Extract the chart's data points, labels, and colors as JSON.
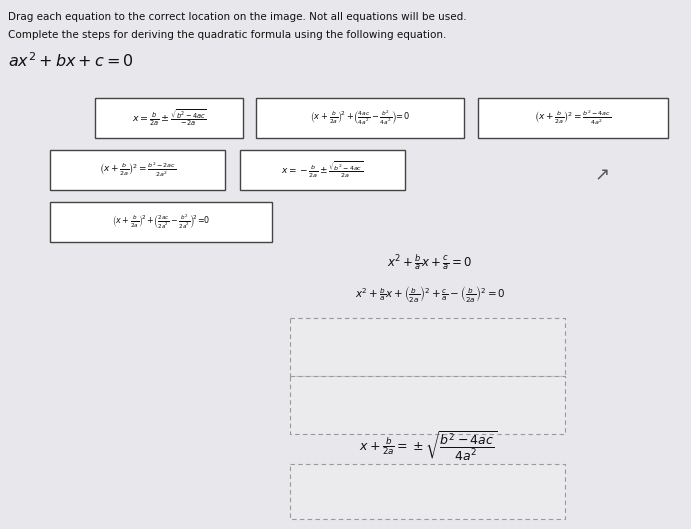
{
  "title_line1": "Drag each equation to the correct location on the image. Not all equations will be used.",
  "title_line2": "Complete the steps for deriving the quadratic formula using the following equation.",
  "main_eq": "ax^2 + bx + c = 0",
  "bg_color": "#e8e8ec",
  "box_bg": "#ffffff",
  "text_color": "#111111",
  "figsize": [
    6.91,
    5.29
  ],
  "dpi": 100
}
